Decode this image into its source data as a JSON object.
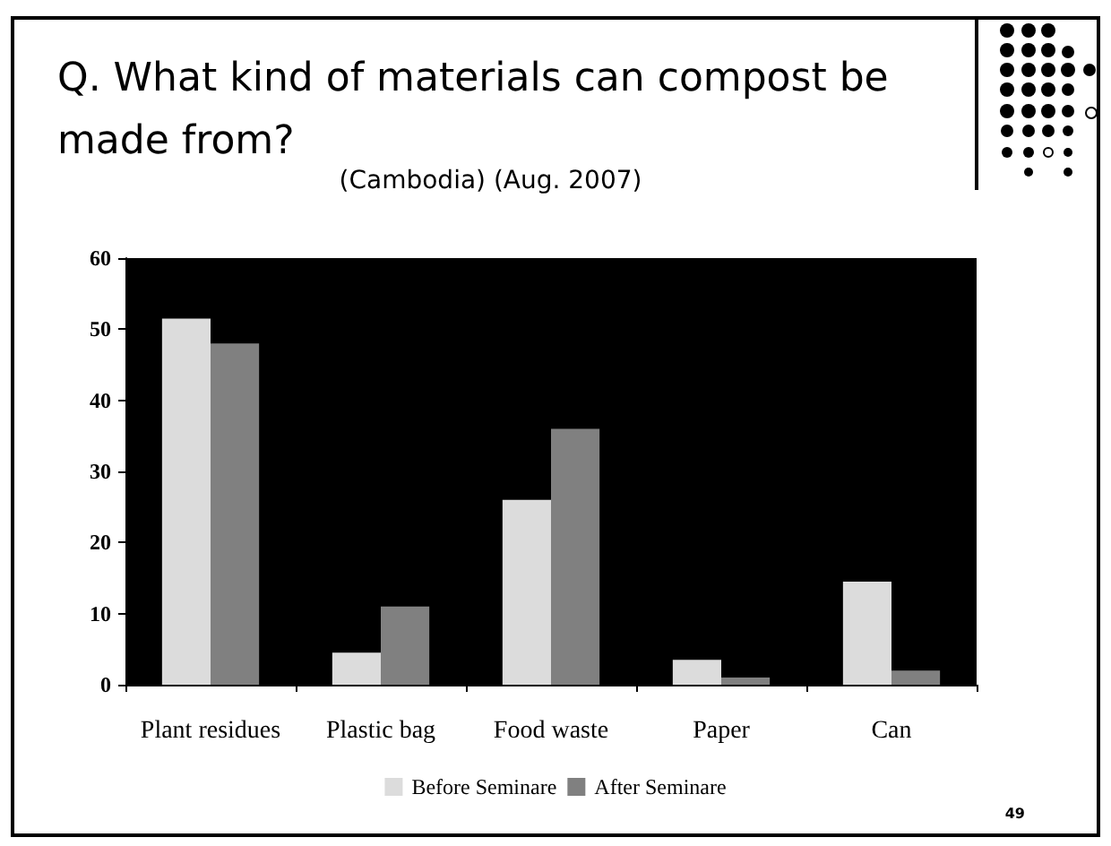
{
  "chart_data": {
    "type": "bar",
    "title": "Q. What kind of materials can compost be made from?",
    "subtitle": "(Cambodia) (Aug. 2007)",
    "categories": [
      "Plant residues",
      "Plastic bag",
      "Food waste",
      "Paper",
      "Can"
    ],
    "series": [
      {
        "name": "Before Seminare",
        "color": "#dcdcdc",
        "values": [
          51.5,
          4.5,
          26,
          3.5,
          14.5
        ]
      },
      {
        "name": "After Seminare",
        "color": "#808080",
        "values": [
          48,
          11,
          36,
          1,
          2
        ]
      }
    ],
    "ylim": [
      0,
      60
    ],
    "yticks": [
      0,
      10,
      20,
      30,
      40,
      50,
      60
    ],
    "legend": "bottom",
    "annotations": [
      "49"
    ]
  }
}
